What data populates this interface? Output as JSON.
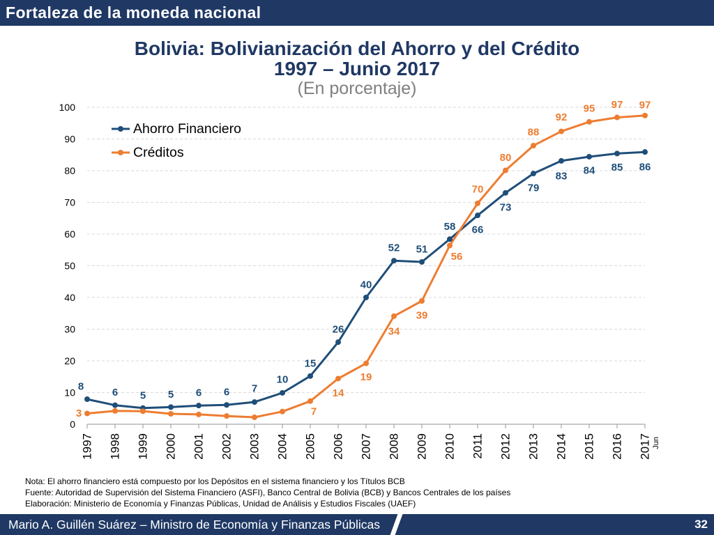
{
  "theme": {
    "band": "#1F3864",
    "band_text": "#FFFFFF",
    "title": "#1F3864",
    "subtitle": "#7F7F7F"
  },
  "header": {
    "title": "Fortaleza de la moneda nacional"
  },
  "chart_data": {
    "type": "line",
    "title": [
      "Bolivia: Bolivianización del Ahorro y del Crédito",
      "1997 – Junio 2017"
    ],
    "subtitle": "(En porcentaje)",
    "x": [
      "1997",
      "1998",
      "1999",
      "2000",
      "2001",
      "2002",
      "2003",
      "2004",
      "2005",
      "2006",
      "2007",
      "2008",
      "2009",
      "2010",
      "2011",
      "2012",
      "2013",
      "2014",
      "2015",
      "2016",
      "2017"
    ],
    "x_sublabels": [
      null,
      null,
      null,
      null,
      null,
      null,
      null,
      null,
      null,
      null,
      null,
      null,
      null,
      null,
      null,
      null,
      null,
      null,
      null,
      null,
      "Jun"
    ],
    "ylim": [
      0,
      100
    ],
    "yticks": [
      0,
      10,
      20,
      30,
      40,
      50,
      60,
      70,
      80,
      90,
      100
    ],
    "grid": true,
    "legend": "top-left",
    "series": [
      {
        "name": "Ahorro Financiero",
        "color": "#1F4E79",
        "values": [
          7.9,
          6.0,
          5.1,
          5.4,
          5.9,
          6.1,
          7.0,
          9.9,
          15.2,
          25.9,
          40.0,
          51.6,
          51.2,
          58.4,
          65.9,
          73.0,
          79.1,
          83.1,
          84.4,
          85.4,
          85.9
        ],
        "labels": [
          "8",
          "6",
          "5",
          "5",
          "6",
          "6",
          "7",
          "10",
          "15",
          "26",
          "40",
          "52",
          "51",
          "58",
          "66",
          "73",
          "79",
          "83",
          "84",
          "85",
          "86"
        ]
      },
      {
        "name": "Créditos",
        "color": "#ED7D31",
        "values": [
          3.4,
          4.2,
          4.1,
          3.3,
          3.1,
          2.6,
          2.2,
          4.0,
          7.3,
          14.4,
          19.2,
          34.1,
          38.9,
          56.4,
          69.7,
          80.1,
          87.9,
          92.4,
          95.4,
          96.8,
          97.4
        ],
        "labels": [
          "3",
          null,
          null,
          null,
          null,
          null,
          null,
          null,
          "7",
          "14",
          "19",
          "34",
          "39",
          "56",
          "70",
          "80",
          "88",
          "92",
          "95",
          "97",
          "97"
        ]
      }
    ]
  },
  "notes": [
    "Nota: El ahorro financiero está compuesto por los Depósitos en el sistema financiero y los Títulos BCB",
    "Fuente: Autoridad de Supervisión del Sistema Financiero (ASFI), Banco Central de Bolivia (BCB) y Bancos Centrales de los países",
    "Elaboración: Ministerio de Economía y Finanzas Públicas, Unidad de Análisis y Estudios Fiscales (UAEF)"
  ],
  "footer": {
    "presenter": "Mario A. Guillén Suárez – Ministro de Economía y Finanzas Públicas",
    "page_number": "32"
  }
}
